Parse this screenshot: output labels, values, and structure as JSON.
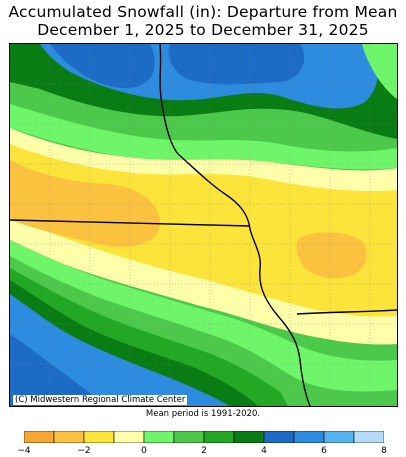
{
  "title_line1": "Accumulated Snowfall (in): Departure from Mean",
  "title_line2": "December 1, 2025 to December 31, 2025",
  "credit": "(C) Midwestern Regional Climate Center",
  "mean_period": "Mean period is 1991-2020.",
  "legend": {
    "bins": [
      {
        "from": -4,
        "to": -3,
        "color": "#f7a632"
      },
      {
        "from": -3,
        "to": -2,
        "color": "#fbc23f"
      },
      {
        "from": -2,
        "to": -1,
        "color": "#fde43a"
      },
      {
        "from": -1,
        "to": 0,
        "color": "#ffffaa"
      },
      {
        "from": 0,
        "to": 1,
        "color": "#6ef56a"
      },
      {
        "from": 1,
        "to": 2,
        "color": "#4cc84a"
      },
      {
        "from": 2,
        "to": 3,
        "color": "#22a824"
      },
      {
        "from": 3,
        "to": 4,
        "color": "#0a7c14"
      },
      {
        "from": 4,
        "to": 5,
        "color": "#1c6cc6"
      },
      {
        "from": 5,
        "to": 6,
        "color": "#2e8ce0"
      },
      {
        "from": 6,
        "to": 7,
        "color": "#55b4f0"
      },
      {
        "from": 7,
        "to": 8,
        "color": "#b4dcfa"
      }
    ],
    "tick_labels": [
      "−4",
      "−2",
      "0",
      "2",
      "4",
      "6",
      "8"
    ]
  }
}
